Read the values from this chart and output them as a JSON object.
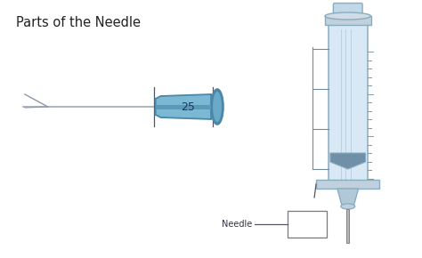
{
  "title": "Parts of the Needle",
  "bg_color": "#ffffff",
  "needle_hub_color": "#7ab8d4",
  "needle_hub_dark": "#4a87a8",
  "needle_hub_stripe": "#5a9ab8",
  "needle_text": "25",
  "syringe_body_color": "#d8e8f4",
  "syringe_outline": "#8aacbf",
  "syringe_dark": "#6a90a8",
  "needle_label": "Needle"
}
